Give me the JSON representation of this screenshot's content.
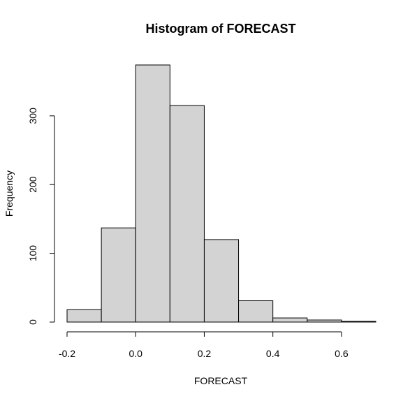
{
  "chart_data": {
    "type": "bar",
    "title": "Histogram of FORECAST",
    "xlabel": "FORECAST",
    "ylabel": "Frequency",
    "bins": [
      {
        "from": -0.2,
        "to": -0.1,
        "count": 18
      },
      {
        "from": -0.1,
        "to": 0.0,
        "count": 137
      },
      {
        "from": 0.0,
        "to": 0.1,
        "count": 374
      },
      {
        "from": 0.1,
        "to": 0.2,
        "count": 315
      },
      {
        "from": 0.2,
        "to": 0.3,
        "count": 120
      },
      {
        "from": 0.3,
        "to": 0.4,
        "count": 31
      },
      {
        "from": 0.4,
        "to": 0.5,
        "count": 6
      },
      {
        "from": 0.5,
        "to": 0.6,
        "count": 3
      },
      {
        "from": 0.6,
        "to": 0.7,
        "count": 1
      }
    ],
    "xlim": [
      -0.2,
      0.7
    ],
    "ylim": [
      0,
      374
    ],
    "x_ticks": [
      -0.2,
      0.0,
      0.2,
      0.4,
      0.6
    ],
    "x_tick_labels": [
      "-0.2",
      "0.0",
      "0.2",
      "0.4",
      "0.6"
    ],
    "y_ticks": [
      0,
      100,
      200,
      300
    ],
    "y_tick_labels": [
      "0",
      "100",
      "200",
      "300"
    ],
    "bar_color": "#d3d3d3",
    "border_color": "#000000",
    "grid": false,
    "legend": "none"
  }
}
